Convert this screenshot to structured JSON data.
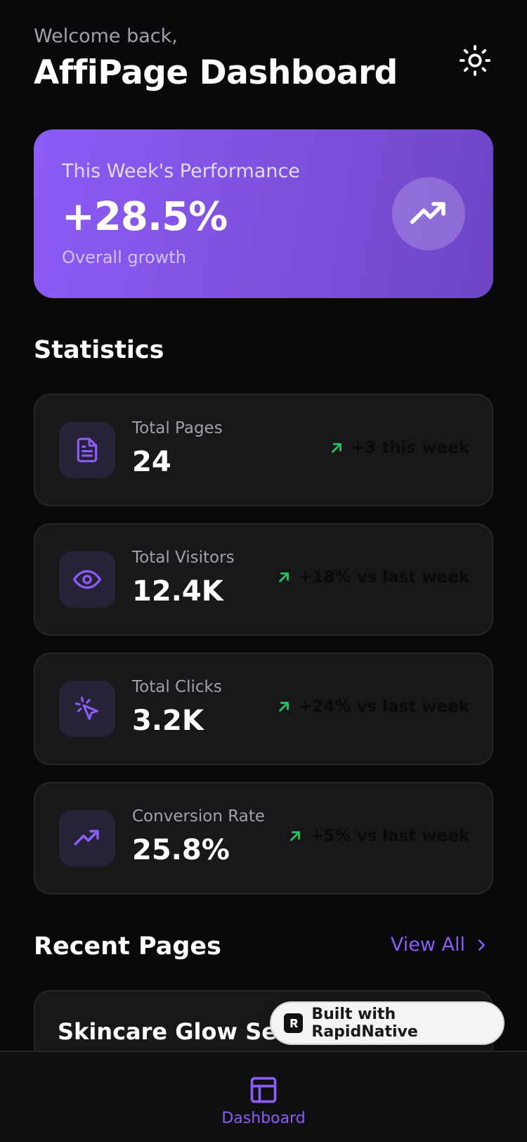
{
  "header": {
    "welcome": "Welcome back,",
    "title": "AffiPage Dashboard",
    "theme_icon": "sun-icon"
  },
  "hero": {
    "label": "This Week's Performance",
    "value": "+28.5%",
    "subtitle": "Overall growth",
    "icon": "trending-up-icon"
  },
  "statistics": {
    "title": "Statistics",
    "items": [
      {
        "label": "Total Pages",
        "value": "24",
        "trend": "+3 this week",
        "icon": "document-icon"
      },
      {
        "label": "Total Visitors",
        "value": "12.4K",
        "trend": "+18% vs last week",
        "icon": "eye-icon"
      },
      {
        "label": "Total Clicks",
        "value": "3.2K",
        "trend": "+24% vs last week",
        "icon": "cursor-click-icon"
      },
      {
        "label": "Conversion Rate",
        "value": "25.8%",
        "trend": "+5% vs last week",
        "icon": "trending-up-icon"
      }
    ]
  },
  "recent": {
    "title": "Recent Pages",
    "view_all": "View All",
    "items": [
      {
        "title": "Skincare Glow Set P"
      }
    ]
  },
  "badge": {
    "text": "Built with RapidNative"
  },
  "nav": {
    "items": [
      {
        "label": "Dashboard",
        "icon": "layout-icon"
      }
    ]
  },
  "colors": {
    "accent": "#8b5cf6",
    "background": "#09090b",
    "card": "#18181b",
    "trend_green": "#22c55e"
  }
}
